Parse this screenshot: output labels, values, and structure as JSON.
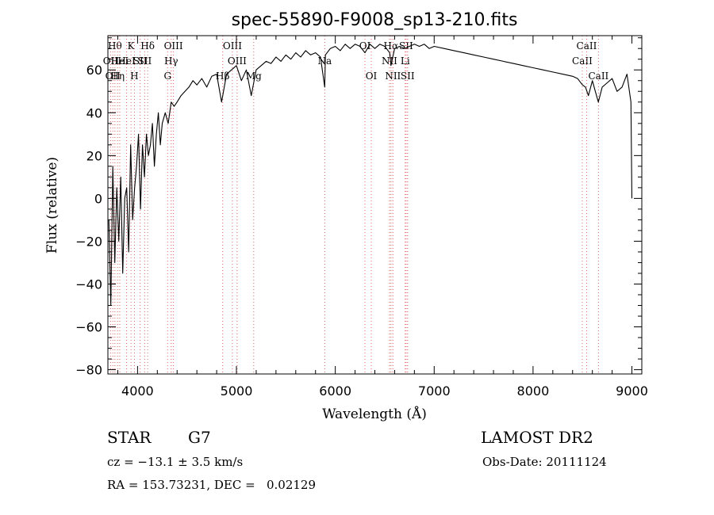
{
  "chart_data": {
    "type": "line",
    "title": "spec-55890-F9008_sp13-210.fits",
    "xlabel": "Wavelength (Å)",
    "ylabel": "Flux (relative)",
    "xlim": [
      3700,
      9100
    ],
    "ylim": [
      -82,
      76
    ],
    "xticks": [
      4000,
      5000,
      6000,
      7000,
      8000,
      9000
    ],
    "yticks": [
      -80,
      -60,
      -40,
      -20,
      0,
      20,
      40,
      60
    ],
    "grid": false,
    "line_color": "#000000",
    "marker_color": "#e06060",
    "series": [
      {
        "x": [
          3710,
          3730,
          3750,
          3770,
          3790,
          3810,
          3830,
          3850,
          3870,
          3890,
          3910,
          3930,
          3950,
          3970,
          3990,
          4010,
          4030,
          4050,
          4070,
          4090,
          4110,
          4130,
          4150,
          4170,
          4190,
          4210,
          4230,
          4250,
          4280,
          4310,
          4340,
          4370,
          4400,
          4440,
          4480,
          4520,
          4560,
          4600,
          4650,
          4700,
          4750,
          4800,
          4850,
          4900,
          4950,
          5000,
          5050,
          5100,
          5150,
          5200,
          5250,
          5300,
          5350,
          5400,
          5450,
          5500,
          5550,
          5600,
          5650,
          5700,
          5750,
          5800,
          5850,
          5893,
          5900,
          5950,
          6000,
          6050,
          6100,
          6150,
          6200,
          6250,
          6300,
          6350,
          6400,
          6450,
          6500,
          6550,
          6563,
          6600,
          6650,
          6700,
          6750,
          6800,
          6850,
          6900,
          6950,
          7000,
          7100,
          7200,
          7300,
          7400,
          7500,
          7600,
          7700,
          7800,
          7900,
          8000,
          8100,
          8200,
          8300,
          8400,
          8450,
          8500,
          8530,
          8560,
          8600,
          8630,
          8660,
          8700,
          8750,
          8800,
          8850,
          8900,
          8950,
          8990,
          9000
        ],
        "y": [
          -10,
          -50,
          15,
          -30,
          5,
          -20,
          10,
          -35,
          0,
          5,
          -25,
          25,
          -10,
          5,
          15,
          30,
          -5,
          25,
          10,
          30,
          20,
          25,
          35,
          15,
          30,
          40,
          25,
          35,
          40,
          35,
          45,
          43,
          45,
          48,
          50,
          52,
          55,
          53,
          56,
          52,
          57,
          58,
          45,
          58,
          60,
          62,
          55,
          60,
          48,
          60,
          62,
          64,
          63,
          66,
          64,
          67,
          65,
          68,
          66,
          69,
          67,
          68,
          66,
          52,
          67,
          70,
          71,
          69,
          72,
          70,
          72,
          71,
          68,
          72,
          70,
          72,
          71,
          68,
          62,
          70,
          71,
          70,
          71,
          72,
          71,
          72,
          70,
          71,
          70,
          69,
          68,
          67,
          66,
          65,
          64,
          63,
          62,
          61,
          60,
          59,
          58,
          57,
          56,
          53,
          52,
          48,
          55,
          50,
          45,
          52,
          54,
          56,
          50,
          52,
          58,
          45,
          0
        ]
      }
    ],
    "line_markers": [
      {
        "x": 3727,
        "label": "OII",
        "row": 1
      },
      {
        "x": 3750,
        "label": "OII",
        "row": 2
      },
      {
        "x": 3771,
        "label": "Hθ",
        "row": 0
      },
      {
        "x": 3798,
        "label": "Hη",
        "row": 2
      },
      {
        "x": 3820,
        "label": "HeI",
        "row": 1
      },
      {
        "x": 3889,
        "label": "HeI",
        "row": 1
      },
      {
        "x": 3934,
        "label": "K",
        "row": 0
      },
      {
        "x": 3968,
        "label": "H",
        "row": 2
      },
      {
        "x": 4026,
        "label": "SII",
        "row": 1
      },
      {
        "x": 4072,
        "label": "SII",
        "row": 1
      },
      {
        "x": 4102,
        "label": "Hδ",
        "row": 0
      },
      {
        "x": 4340,
        "label": "Hγ",
        "row": 1
      },
      {
        "x": 4304,
        "label": "G",
        "row": 2
      },
      {
        "x": 4363,
        "label": "OIII",
        "row": 0
      },
      {
        "x": 4861,
        "label": "Hβ",
        "row": 2
      },
      {
        "x": 4959,
        "label": "OIII",
        "row": 0
      },
      {
        "x": 5007,
        "label": "OIII",
        "row": 1
      },
      {
        "x": 5175,
        "label": "Mg",
        "row": 2
      },
      {
        "x": 5893,
        "label": "Na",
        "row": 1
      },
      {
        "x": 6300,
        "label": "OI",
        "row": 0
      },
      {
        "x": 6364,
        "label": "OI",
        "row": 2
      },
      {
        "x": 6548,
        "label": "NII",
        "row": 1
      },
      {
        "x": 6563,
        "label": "Hα",
        "row": 0
      },
      {
        "x": 6583,
        "label": "NII",
        "row": 2
      },
      {
        "x": 6707,
        "label": "Li",
        "row": 1
      },
      {
        "x": 6716,
        "label": "SII",
        "row": 0
      },
      {
        "x": 6731,
        "label": "SII",
        "row": 2
      },
      {
        "x": 8498,
        "label": "CaII",
        "row": 1
      },
      {
        "x": 8542,
        "label": "CaII",
        "row": 0
      },
      {
        "x": 8662,
        "label": "CaII",
        "row": 2
      }
    ]
  },
  "info": {
    "object_class": "STAR",
    "subclass": "G7",
    "survey": "LAMOST DR2",
    "redshift": "cz = −13.1 ± 3.5 km/s",
    "obs_date": "Obs-Date: 20111124",
    "coords": "RA = 153.73231, DEC =   0.02129"
  }
}
